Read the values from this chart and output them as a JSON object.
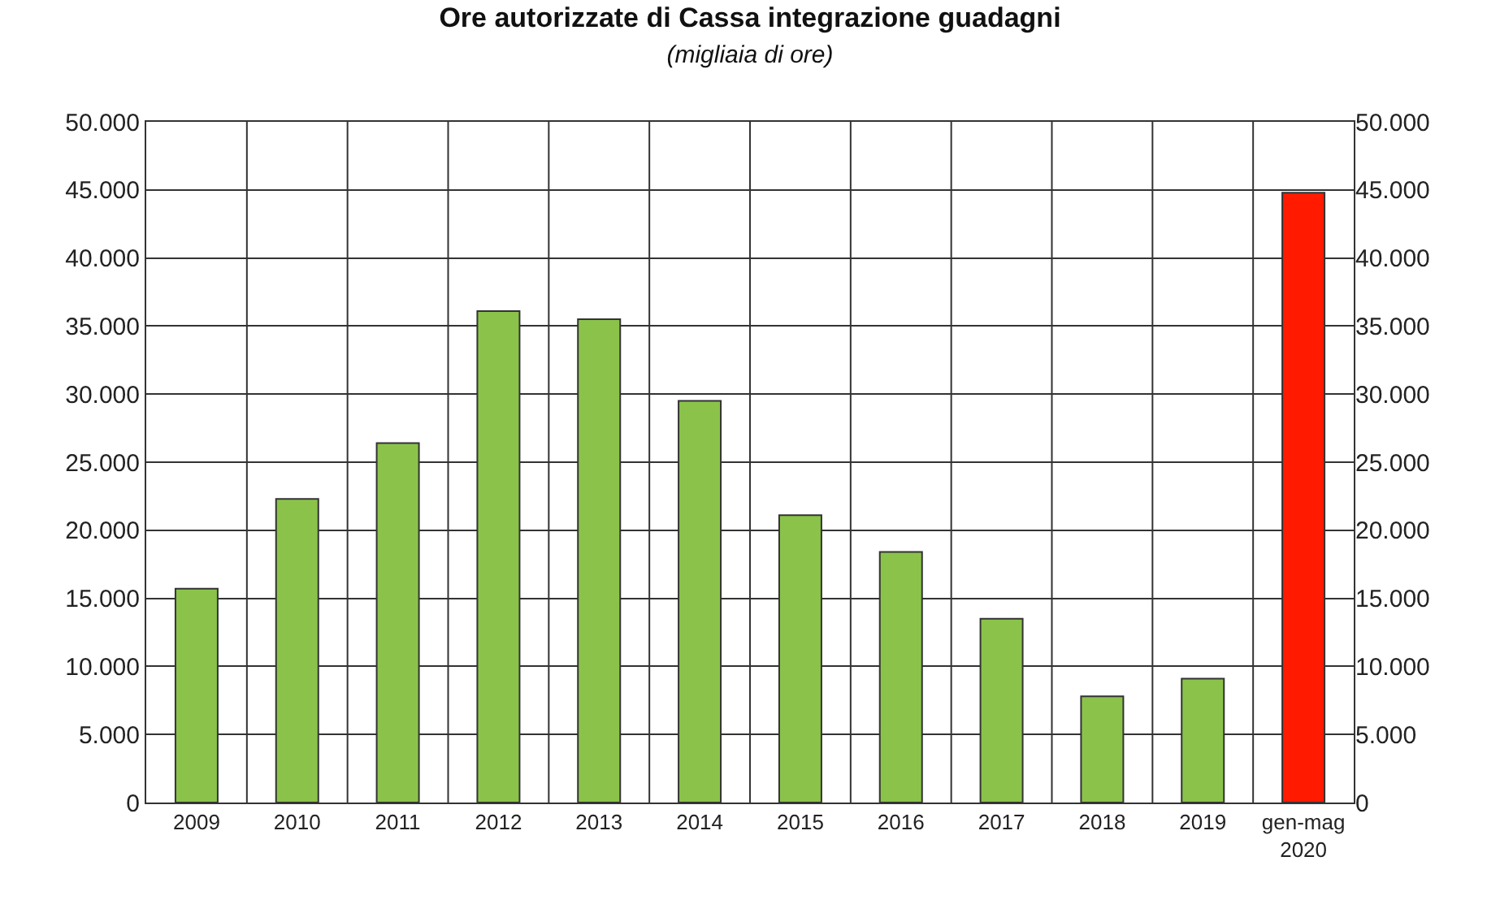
{
  "chart_data": {
    "type": "bar",
    "title": "Ore autorizzate di Cassa integrazione guadagni",
    "subtitle": "(migliaia di ore)",
    "categories": [
      "2009",
      "2010",
      "2011",
      "2012",
      "2013",
      "2014",
      "2015",
      "2016",
      "2017",
      "2018",
      "2019",
      "gen-mag\n2020"
    ],
    "values": [
      15700,
      22300,
      26400,
      36100,
      35500,
      29500,
      21100,
      18400,
      13500,
      7800,
      9100,
      44800
    ],
    "colors": [
      "#8bc34a",
      "#8bc34a",
      "#8bc34a",
      "#8bc34a",
      "#8bc34a",
      "#8bc34a",
      "#8bc34a",
      "#8bc34a",
      "#8bc34a",
      "#8bc34a",
      "#8bc34a",
      "#ff1a00"
    ],
    "ylim": [
      0,
      50000
    ],
    "yticks": [
      {
        "value": 0,
        "label": "0"
      },
      {
        "value": 5000,
        "label": "5.000"
      },
      {
        "value": 10000,
        "label": "10.000"
      },
      {
        "value": 15000,
        "label": "15.000"
      },
      {
        "value": 20000,
        "label": "20.000"
      },
      {
        "value": 25000,
        "label": "25.000"
      },
      {
        "value": 30000,
        "label": "30.000"
      },
      {
        "value": 35000,
        "label": "35.000"
      },
      {
        "value": 40000,
        "label": "40.000"
      },
      {
        "value": 45000,
        "label": "45.000"
      },
      {
        "value": 50000,
        "label": "50.000"
      }
    ],
    "y2lim": [
      0,
      50000
    ],
    "y2ticks": [
      {
        "value": 0,
        "label": "0"
      },
      {
        "value": 5000,
        "label": "5.000"
      },
      {
        "value": 10000,
        "label": "10.000"
      },
      {
        "value": 15000,
        "label": "15.000"
      },
      {
        "value": 20000,
        "label": "20.000"
      },
      {
        "value": 25000,
        "label": "25.000"
      },
      {
        "value": 30000,
        "label": "30.000"
      },
      {
        "value": 35000,
        "label": "35.000"
      },
      {
        "value": 40000,
        "label": "40.000"
      },
      {
        "value": 45000,
        "label": "45.000"
      },
      {
        "value": 50000,
        "label": "50.000"
      }
    ],
    "grid": true
  }
}
